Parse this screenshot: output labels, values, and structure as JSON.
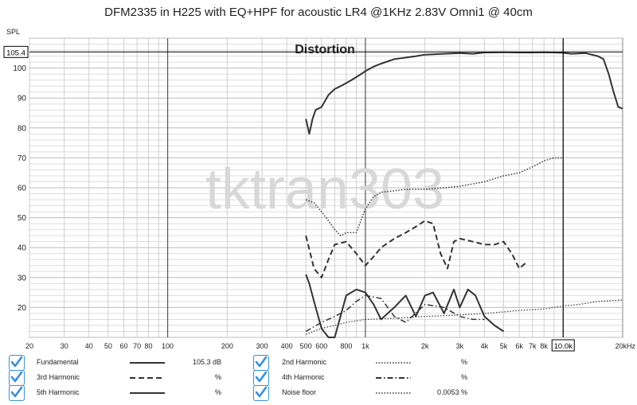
{
  "chart_data": {
    "type": "line",
    "title": "DFM2335 in H225 with EQ+HPF for acoustic LR4 @1KHz 2.83V Omni1 @ 40cm",
    "ylabel": "SPL",
    "xlabel": "",
    "x_scale": "log",
    "xlim": [
      20,
      20000
    ],
    "ylim": [
      10,
      110
    ],
    "grid": true,
    "annotation": "Distortion",
    "watermark": "tktran303",
    "cursor": {
      "x_label": "10.0k",
      "y_label": "105.4",
      "x": 10000,
      "y": 105.4
    },
    "x_ticks": [
      {
        "v": 20,
        "label": "20"
      },
      {
        "v": 30,
        "label": "30"
      },
      {
        "v": 40,
        "label": "40"
      },
      {
        "v": 50,
        "label": "50"
      },
      {
        "v": 60,
        "label": "60"
      },
      {
        "v": 70,
        "label": "70"
      },
      {
        "v": 80,
        "label": "80"
      },
      {
        "v": 100,
        "label": "100"
      },
      {
        "v": 200,
        "label": "200"
      },
      {
        "v": 300,
        "label": "300"
      },
      {
        "v": 400,
        "label": "400"
      },
      {
        "v": 500,
        "label": "500"
      },
      {
        "v": 600,
        "label": "600"
      },
      {
        "v": 800,
        "label": "800"
      },
      {
        "v": 1000,
        "label": "1k"
      },
      {
        "v": 2000,
        "label": "2k"
      },
      {
        "v": 3000,
        "label": "3k"
      },
      {
        "v": 4000,
        "label": "4k"
      },
      {
        "v": 5000,
        "label": "5k"
      },
      {
        "v": 6000,
        "label": "6k"
      },
      {
        "v": 7000,
        "label": "7k"
      },
      {
        "v": 8000,
        "label": "8k"
      },
      {
        "v": 20000,
        "label": "20kHz"
      }
    ],
    "y_ticks": [
      20,
      30,
      40,
      50,
      60,
      70,
      80,
      90,
      100
    ],
    "series": [
      {
        "name": "Fundamental",
        "style": "solid",
        "width": 2,
        "x": [
          500,
          520,
          540,
          560,
          600,
          650,
          700,
          750,
          800,
          850,
          900,
          950,
          1000,
          1100,
          1200,
          1400,
          1600,
          1800,
          2000,
          2500,
          3000,
          3500,
          4000,
          5000,
          6000,
          7000,
          8000,
          9000,
          10000,
          11000,
          13000,
          15000,
          16000,
          17000,
          18000,
          19000,
          20000
        ],
        "y": [
          83,
          78,
          83,
          86,
          87,
          91,
          93,
          94,
          95,
          96,
          97,
          98,
          99,
          100.5,
          101.5,
          103,
          103.5,
          104,
          104.5,
          104.8,
          105,
          104.8,
          105.2,
          105.3,
          105.2,
          105.2,
          105.3,
          105.2,
          105.1,
          104.8,
          105,
          104,
          103,
          98,
          92,
          87,
          86.5
        ]
      },
      {
        "name": "2nd Harmonic",
        "style": "dotted",
        "width": 1.5,
        "x": [
          500,
          550,
          600,
          650,
          700,
          750,
          800,
          900,
          1000,
          1100,
          1200,
          1400,
          1600,
          2000,
          2500,
          3000,
          4000,
          5000,
          6000,
          7000,
          8000,
          9000,
          10000
        ],
        "y": [
          56,
          55,
          52,
          49,
          46,
          44,
          45,
          45,
          53,
          57,
          58.5,
          59,
          59.5,
          59.5,
          60,
          60.5,
          62,
          64,
          65,
          67,
          69,
          70,
          70
        ]
      },
      {
        "name": "3rd Harmonic",
        "style": "dashed",
        "width": 2,
        "x": [
          500,
          550,
          600,
          650,
          700,
          800,
          900,
          1000,
          1100,
          1200,
          1400,
          1600,
          1800,
          2000,
          2200,
          2400,
          2600,
          2800,
          3000,
          3500,
          4000,
          4500,
          5000,
          5500,
          6000,
          6500
        ],
        "y": [
          44,
          33,
          30,
          36,
          41,
          42,
          38,
          34,
          37,
          40,
          43,
          45,
          47,
          49,
          48,
          38,
          33,
          42,
          43,
          42,
          41,
          41,
          42,
          38,
          33,
          35
        ]
      },
      {
        "name": "4th Harmonic",
        "style": "dashdot",
        "width": 1.5,
        "x": [
          500,
          600,
          700,
          800,
          900,
          1000,
          1200,
          1400,
          1600,
          2000,
          2500,
          3000,
          3500,
          4000
        ],
        "y": [
          12,
          15,
          17,
          19,
          22,
          24,
          23,
          17,
          15,
          21,
          20,
          17,
          16,
          16
        ]
      },
      {
        "name": "5th Harmonic",
        "style": "solid",
        "width": 2,
        "x": [
          500,
          520,
          550,
          600,
          650,
          700,
          800,
          900,
          1000,
          1100,
          1200,
          1400,
          1600,
          1800,
          2000,
          2200,
          2500,
          2800,
          3000,
          3300,
          3600,
          4000,
          4500,
          5000
        ],
        "y": [
          31,
          28,
          22,
          13,
          10,
          10,
          24,
          26,
          25,
          21,
          16,
          20,
          24,
          17,
          24,
          25,
          18,
          26,
          20,
          26,
          24,
          17,
          14,
          12
        ]
      },
      {
        "name": "Noise floor",
        "style": "dotted",
        "width": 1.2,
        "x": [
          500,
          600,
          700,
          800,
          1000,
          1500,
          2000,
          3000,
          4000,
          5000,
          6000,
          8000,
          10000,
          12000,
          15000,
          20000
        ],
        "y": [
          11,
          13,
          14,
          15,
          16,
          16.5,
          17,
          17.5,
          18,
          18.5,
          19,
          19.5,
          20.5,
          21,
          22,
          22.5
        ]
      }
    ]
  },
  "legend": [
    {
      "name": "Fundamental",
      "style": "solid",
      "value": "105.3 dB"
    },
    {
      "name": "2nd Harmonic",
      "style": "dotted",
      "value": "%"
    },
    {
      "name": "3rd Harmonic",
      "style": "dashed",
      "value": "%"
    },
    {
      "name": "4th Harmonic",
      "style": "dashdot",
      "value": "%"
    },
    {
      "name": "5th Harmonic",
      "style": "solid",
      "value": "%"
    },
    {
      "name": "Noise floor",
      "style": "dotted",
      "value": "0.0053 %"
    }
  ],
  "colors": {
    "checkbox": "#3a8fd8",
    "trace": "#333333",
    "grid_minor": "#d6d6d6",
    "grid_major": "#444444",
    "watermark": "#d8d8d8"
  }
}
